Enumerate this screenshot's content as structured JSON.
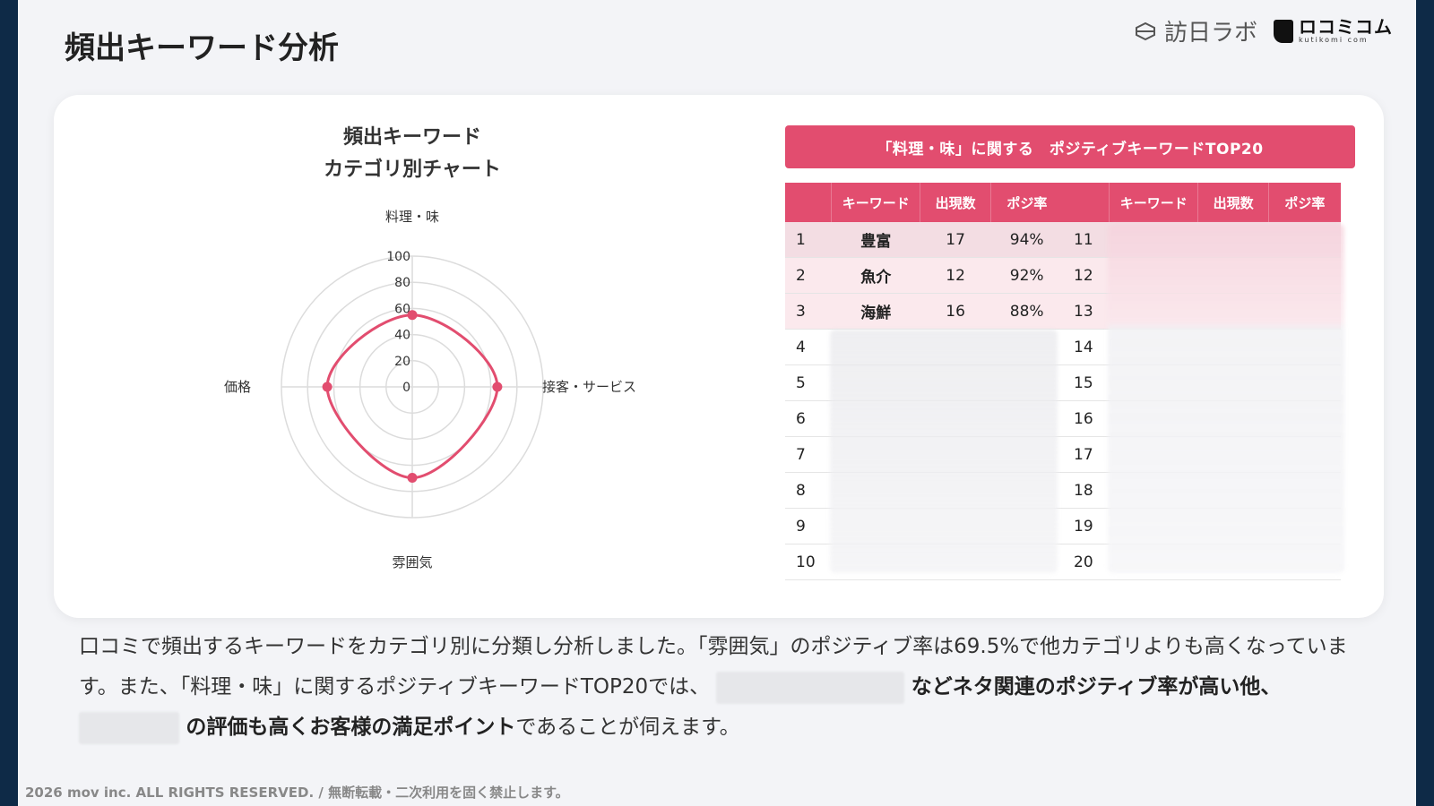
{
  "page_title": "頻出キーワード分析",
  "logos": {
    "brand1": "訪日ラボ",
    "brand2": "ロコミコム",
    "brand2_sub": "kutikomi com"
  },
  "chart_title": {
    "line1": "頻出キーワード",
    "line2": "カテゴリ別チャート"
  },
  "chart_data": {
    "type": "radar",
    "axes": [
      "料理・味",
      "接客・サービス",
      "雰囲気",
      "価格"
    ],
    "values": [
      55,
      65,
      69.5,
      65
    ],
    "ticks": [
      0,
      20,
      40,
      60,
      80,
      100
    ],
    "range": [
      0,
      100
    ],
    "grid": true,
    "color": "#e24d6f"
  },
  "table": {
    "banner": "「料理・味」に関する　ポジティブキーワードTOP20",
    "headers": {
      "keyword": "キーワード",
      "count": "出現数",
      "rate": "ポジ率"
    },
    "left_rows": [
      {
        "rank": "1",
        "keyword": "豊富",
        "count": "17",
        "rate": "94%"
      },
      {
        "rank": "2",
        "keyword": "魚介",
        "count": "12",
        "rate": "92%"
      },
      {
        "rank": "3",
        "keyword": "海鮮",
        "count": "16",
        "rate": "88%"
      },
      {
        "rank": "4"
      },
      {
        "rank": "5"
      },
      {
        "rank": "6"
      },
      {
        "rank": "7"
      },
      {
        "rank": "8"
      },
      {
        "rank": "9"
      },
      {
        "rank": "10"
      }
    ],
    "right_rows": [
      {
        "rank": "11"
      },
      {
        "rank": "12"
      },
      {
        "rank": "13"
      },
      {
        "rank": "14"
      },
      {
        "rank": "15"
      },
      {
        "rank": "16"
      },
      {
        "rank": "17"
      },
      {
        "rank": "18"
      },
      {
        "rank": "19"
      },
      {
        "rank": "20"
      }
    ]
  },
  "description": {
    "p1": "口コミで頻出するキーワードをカテゴリ別に分類し分析しました。「雰囲気」のポジティブ率は69.5%で他カテゴリよりも高くなっています。また、「料理・味」に関するポジティブキーワードTOP20では、",
    "p2_bold": "などネタ関連のポジティブ率が高い他、",
    "p3_bold": "の評価も高くお客様の満足ポイント",
    "p4": "であることが伺えます。"
  },
  "footer": "2026 mov inc. ALL RIGHTS RESERVED. / 無断転載・二次利用を固く禁止します。"
}
